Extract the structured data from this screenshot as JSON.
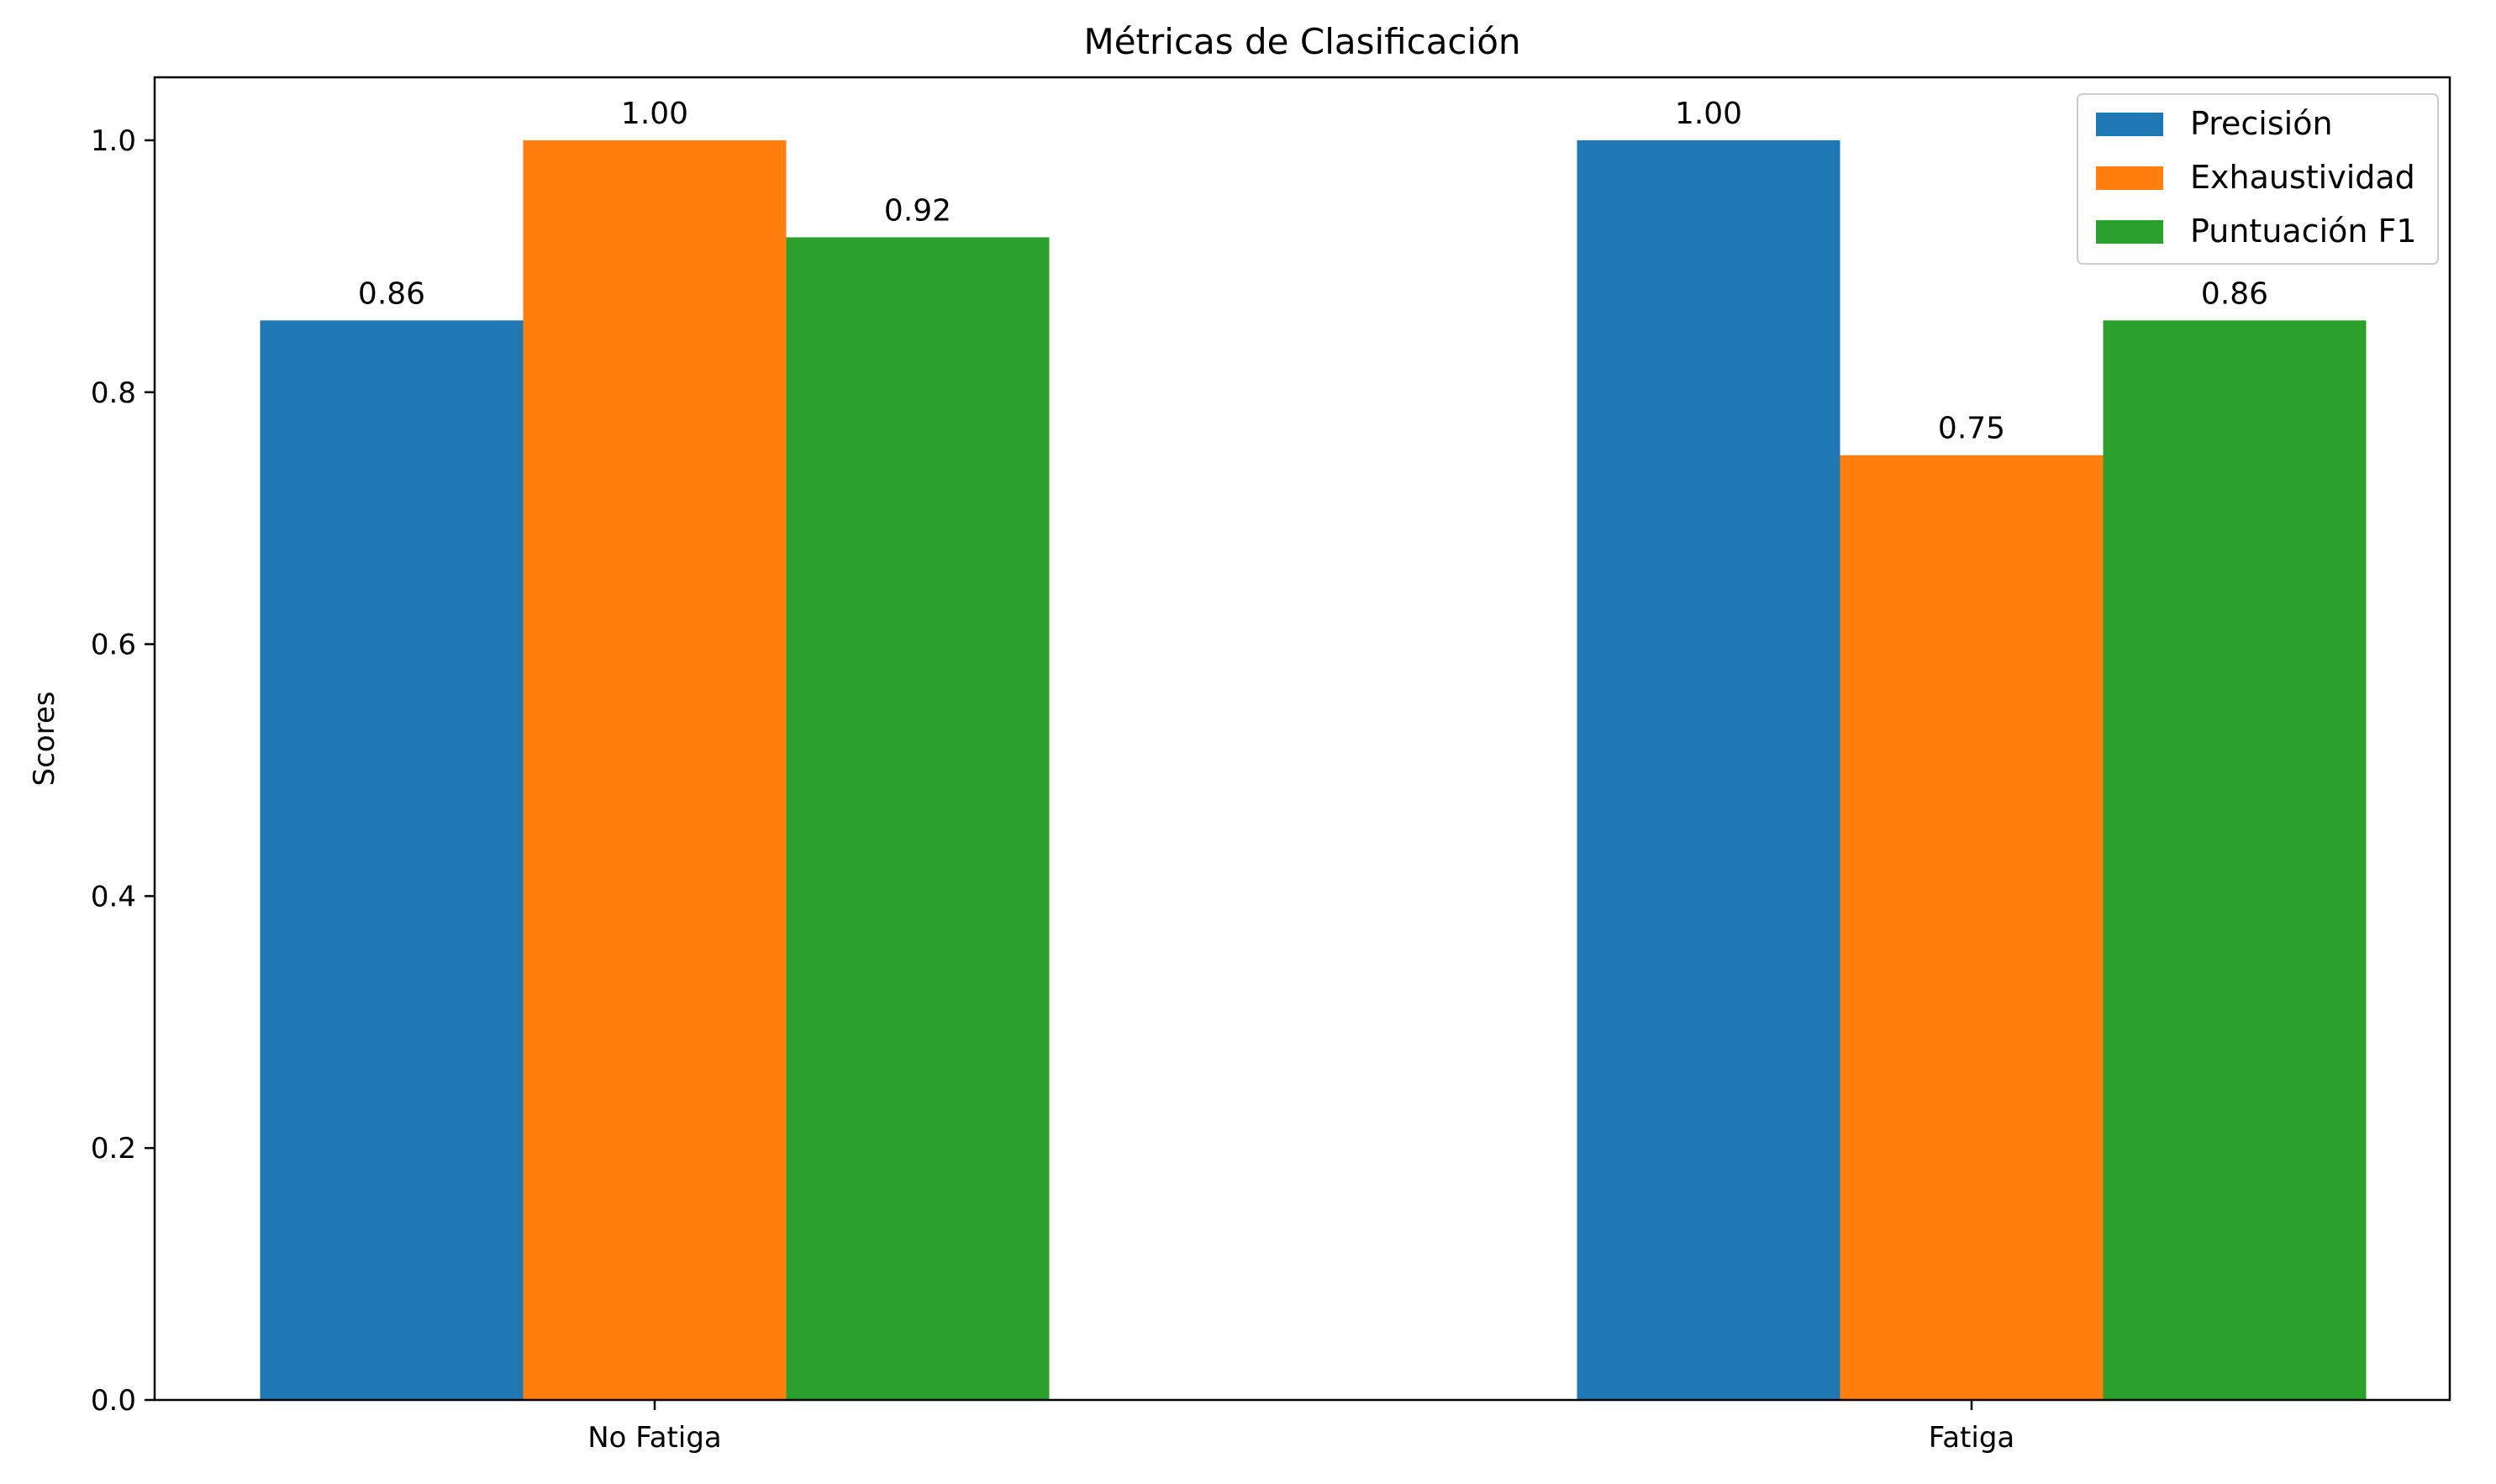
{
  "chart_data": {
    "type": "bar",
    "title": "Métricas de Clasificación",
    "xlabel": "",
    "ylabel": "Scores",
    "categories": [
      "No Fatiga",
      "Fatiga"
    ],
    "series": [
      {
        "name": "Precisión",
        "values": [
          0.857,
          1.0
        ],
        "labels": [
          "0.86",
          "1.00"
        ],
        "color": "#1f77b4"
      },
      {
        "name": "Exhaustividad",
        "values": [
          1.0,
          0.75
        ],
        "labels": [
          "1.00",
          "0.75"
        ],
        "color": "#ff7f0e"
      },
      {
        "name": "Puntuación F1",
        "values": [
          0.923,
          0.857
        ],
        "labels": [
          "0.92",
          "0.86"
        ],
        "color": "#2ca02c"
      }
    ],
    "ylim": [
      0,
      1.05
    ],
    "yticks": [
      0.0,
      0.2,
      0.4,
      0.6,
      0.8,
      1.0
    ],
    "ytick_labels": [
      "0.0",
      "0.2",
      "0.4",
      "0.6",
      "0.8",
      "1.0"
    ],
    "grid": false,
    "legend_position": "top-right"
  }
}
